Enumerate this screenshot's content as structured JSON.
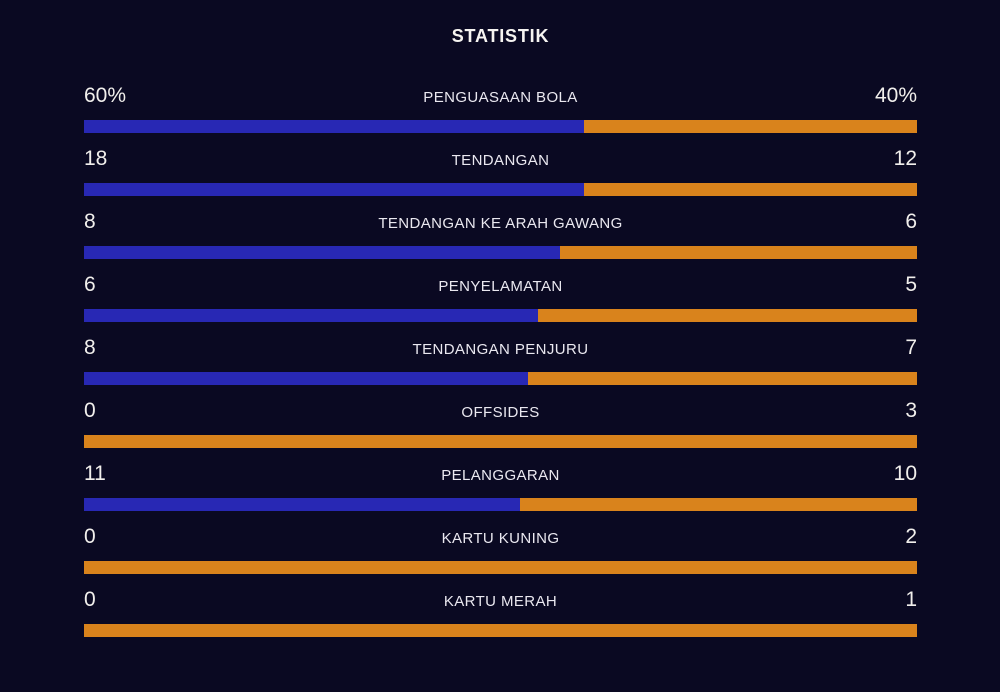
{
  "title": "STATISTIK",
  "colors": {
    "background": "#0a0922",
    "home": "#2828b4",
    "away": "#d9831c",
    "title_text": "#f6f4f1",
    "value_text": "#f1efec",
    "label_text": "#eae8f0"
  },
  "rows": [
    {
      "label": "PENGUASAAN BOLA",
      "home_text": "60%",
      "away_text": "40%",
      "home": 60,
      "away": 40
    },
    {
      "label": "TENDANGAN",
      "home_text": "18",
      "away_text": "12",
      "home": 18,
      "away": 12
    },
    {
      "label": "TENDANGAN KE ARAH GAWANG",
      "home_text": "8",
      "away_text": "6",
      "home": 8,
      "away": 6
    },
    {
      "label": "PENYELAMATAN",
      "home_text": "6",
      "away_text": "5",
      "home": 6,
      "away": 5
    },
    {
      "label": "TENDANGAN PENJURU",
      "home_text": "8",
      "away_text": "7",
      "home": 8,
      "away": 7
    },
    {
      "label": "OFFSIDES",
      "home_text": "0",
      "away_text": "3",
      "home": 0,
      "away": 3
    },
    {
      "label": "PELANGGARAN",
      "home_text": "11",
      "away_text": "10",
      "home": 11,
      "away": 10
    },
    {
      "label": "KARTU KUNING",
      "home_text": "0",
      "away_text": "2",
      "home": 0,
      "away": 2
    },
    {
      "label": "KARTU MERAH",
      "home_text": "0",
      "away_text": "1",
      "home": 0,
      "away": 1
    }
  ],
  "chart_data": {
    "type": "bar",
    "orientation": "horizontal-stacked",
    "title": "STATISTIK",
    "categories": [
      "PENGUASAAN BOLA",
      "TENDANGAN",
      "TENDANGAN KE ARAH GAWANG",
      "PENYELAMATAN",
      "TENDANGAN PENJURU",
      "OFFSIDES",
      "PELANGGARAN",
      "KARTU KUNING",
      "KARTU MERAH"
    ],
    "series": [
      {
        "name": "home",
        "color": "#2828b4",
        "values": [
          60,
          18,
          8,
          6,
          8,
          0,
          11,
          0,
          0
        ]
      },
      {
        "name": "away",
        "color": "#d9831c",
        "values": [
          40,
          12,
          6,
          5,
          7,
          3,
          10,
          2,
          1
        ]
      }
    ],
    "value_labels": {
      "home": [
        "60%",
        "18",
        "8",
        "6",
        "8",
        "0",
        "11",
        "0",
        "0"
      ],
      "away": [
        "40%",
        "12",
        "6",
        "5",
        "7",
        "3",
        "10",
        "2",
        "1"
      ]
    },
    "notes": "Each bar is stacked: home share = home/(home+away); first row shown as percentages",
    "legend": "none",
    "grid": false
  }
}
